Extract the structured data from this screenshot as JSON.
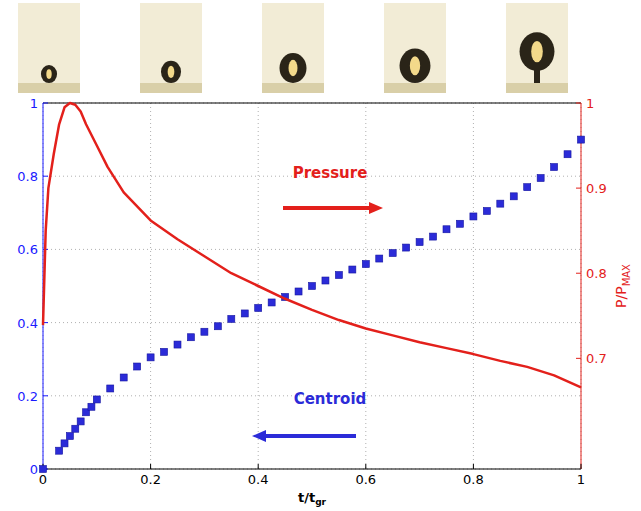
{
  "chart_data": {
    "type": "line",
    "x_label": {
      "text": "t/t",
      "subscript": "gr"
    },
    "y2_label": {
      "text": "P/P",
      "subscript": "MAX"
    },
    "xlim": [
      0,
      1
    ],
    "xticks": [
      0,
      0.2,
      0.4,
      0.6,
      0.8,
      1
    ],
    "ylim": [
      0,
      1
    ],
    "yticks": [
      0,
      0.2,
      0.4,
      0.6,
      0.8,
      1
    ],
    "y2lim": [
      0.57,
      1
    ],
    "y2ticks": [
      0.7,
      0.8,
      0.9,
      1
    ],
    "grid": true,
    "series": [
      {
        "name": "Centroid",
        "type": "scatter",
        "marker": "square",
        "color": "#2b2bd8",
        "x": [
          0,
          0.03,
          0.04,
          0.05,
          0.06,
          0.07,
          0.08,
          0.09,
          0.1,
          0.125,
          0.15,
          0.175,
          0.2,
          0.225,
          0.25,
          0.275,
          0.3,
          0.325,
          0.35,
          0.375,
          0.4,
          0.425,
          0.45,
          0.475,
          0.5,
          0.525,
          0.55,
          0.575,
          0.6,
          0.625,
          0.65,
          0.675,
          0.7,
          0.725,
          0.75,
          0.775,
          0.8,
          0.825,
          0.85,
          0.875,
          0.9,
          0.925,
          0.95,
          0.975,
          1
        ],
        "values": [
          0,
          0.05,
          0.07,
          0.09,
          0.11,
          0.13,
          0.155,
          0.17,
          0.19,
          0.22,
          0.25,
          0.28,
          0.305,
          0.32,
          0.34,
          0.36,
          0.375,
          0.39,
          0.41,
          0.425,
          0.44,
          0.455,
          0.47,
          0.485,
          0.5,
          0.515,
          0.53,
          0.545,
          0.56,
          0.575,
          0.59,
          0.605,
          0.62,
          0.635,
          0.655,
          0.67,
          0.69,
          0.705,
          0.725,
          0.745,
          0.77,
          0.795,
          0.825,
          0.86,
          0.9
        ]
      },
      {
        "name": "Pressure",
        "type": "line",
        "axis": "y2",
        "color": "#e3201b",
        "x": [
          0,
          0.005,
          0.01,
          0.02,
          0.03,
          0.04,
          0.05,
          0.06,
          0.07,
          0.08,
          0.1,
          0.12,
          0.15,
          0.2,
          0.25,
          0.3,
          0.35,
          0.4,
          0.45,
          0.5,
          0.55,
          0.6,
          0.65,
          0.7,
          0.75,
          0.8,
          0.85,
          0.9,
          0.95,
          1
        ],
        "values": [
          0.739,
          0.85,
          0.9,
          0.94,
          0.975,
          0.995,
          1,
          0.998,
          0.99,
          0.975,
          0.95,
          0.925,
          0.895,
          0.862,
          0.84,
          0.82,
          0.8,
          0.785,
          0.77,
          0.757,
          0.745,
          0.735,
          0.727,
          0.719,
          0.712,
          0.705,
          0.697,
          0.69,
          0.68,
          0.666
        ]
      }
    ]
  }
}
